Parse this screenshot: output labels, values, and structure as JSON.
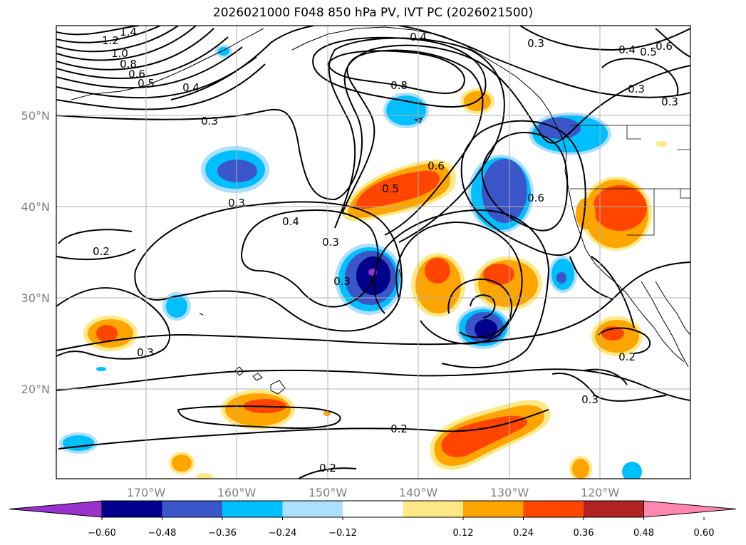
{
  "title": "2026021000 F048 850 hPa PV, IVT PC (2026021500)",
  "axes": {
    "lon_ticks": [
      "170°W",
      "160°W",
      "150°W",
      "140°W",
      "130°W",
      "120°W"
    ],
    "lat_ticks": [
      "50°N",
      "40°N",
      "30°N",
      "20°N"
    ]
  },
  "contour_labels": [
    "1.4",
    "1.2",
    "1.0",
    "0.8",
    "0.6",
    "0.5",
    "0.4",
    "0.3",
    "0.4",
    "0.3",
    "0.8",
    "0.6",
    "0.5",
    "0.6",
    "0.4",
    "0.3",
    "0.3",
    "0.4",
    "0.5",
    "0.6",
    "0.3",
    "0.3",
    "0.2",
    "0.3",
    "0.3",
    "0.2",
    "0.2",
    "0.3",
    "0.2"
  ],
  "colorbar": {
    "ticks": [
      "−0.60",
      "−0.48",
      "−0.36",
      "−0.24",
      "−0.12",
      "0.12",
      "0.24",
      "0.36",
      "0.48",
      "0.60"
    ],
    "colors": [
      "#9932cc",
      "#00008b",
      "#3a56c8",
      "#00bfff",
      "#addfff",
      "#ffffff",
      "#ffe987",
      "#ffa500",
      "#ff4500",
      "#b22222",
      "#ff86ad"
    ]
  }
}
